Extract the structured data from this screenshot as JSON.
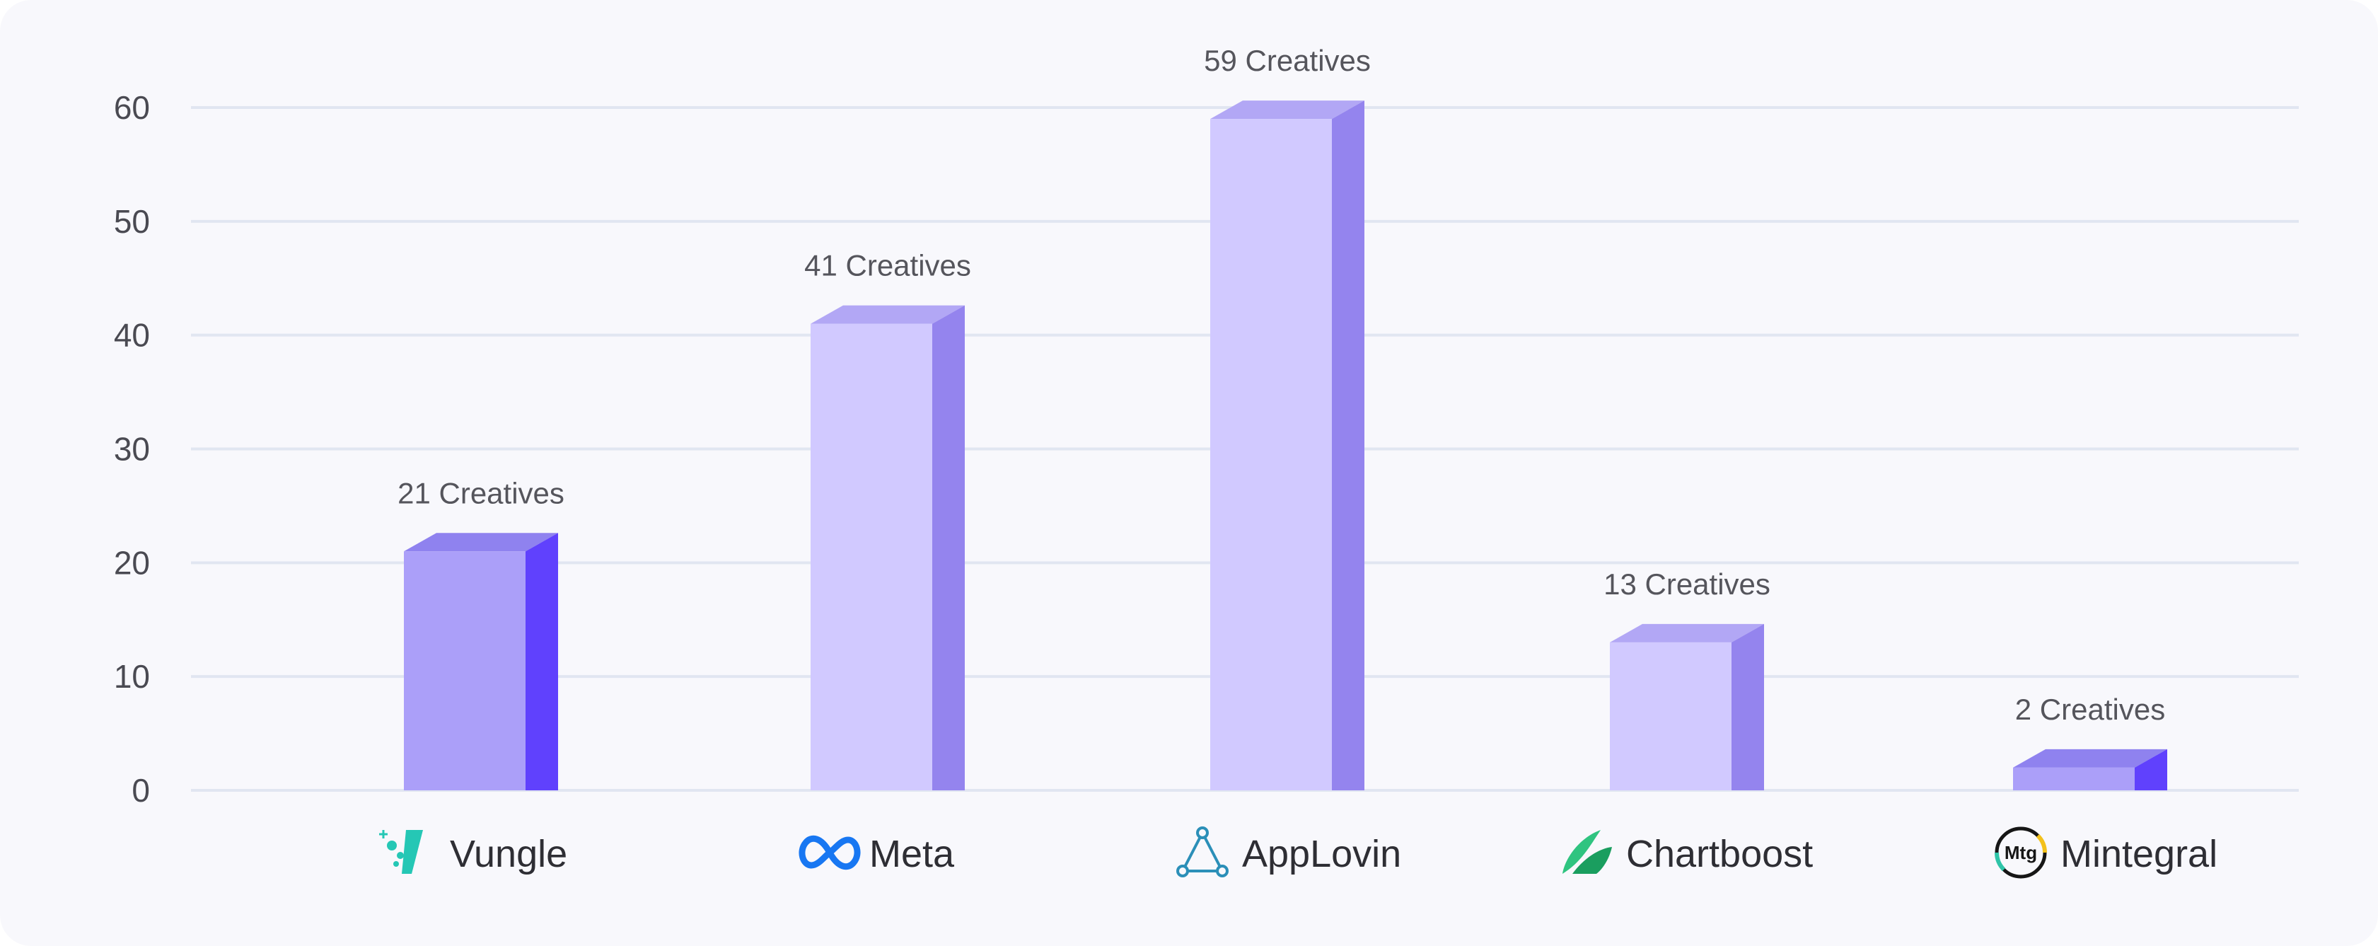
{
  "chart_data": {
    "type": "bar",
    "title": "",
    "xlabel": "",
    "ylabel": "",
    "ylim": [
      0,
      60
    ],
    "yticks": [
      0,
      10,
      20,
      30,
      40,
      50,
      60
    ],
    "grid": true,
    "categories": [
      "Vungle",
      "Meta",
      "AppLovin",
      "Chartboost",
      "Mintegral"
    ],
    "values": [
      21,
      41,
      59,
      13,
      2
    ],
    "data_labels": [
      "21 Creatives",
      "41 Creatives",
      "59 Creatives",
      "13 Creatives",
      "2 Creatives"
    ],
    "logos": [
      "vungle-logo-icon",
      "meta-logo-icon",
      "applovin-logo-icon",
      "chartboost-logo-icon",
      "mintegral-logo-icon"
    ],
    "logo_text": {
      "mintegral": "Mtg"
    },
    "colors": {
      "bar_front_strong": "#ab9ff9",
      "bar_side_strong": "#6041fd",
      "bar_top_strong": "#8f82ef",
      "bar_front_light": "#d1c9ff",
      "bar_side_light": "#9484ee",
      "bar_top_light": "#b2a7f5",
      "grid": "#e1e6f1",
      "background": "#f8f8fc"
    },
    "bar_styles": [
      "strong",
      "light",
      "light",
      "light",
      "strong"
    ]
  }
}
